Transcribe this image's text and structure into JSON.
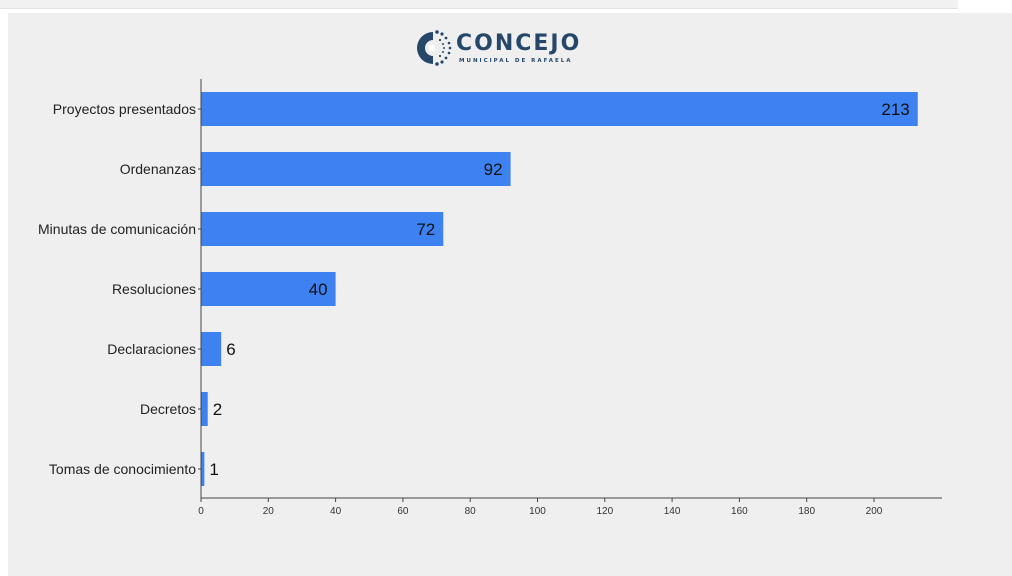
{
  "logo": {
    "name": "CONCEJO",
    "subtitle": "MUNICIPAL DE RAFAELA"
  },
  "colors": {
    "bar": "#3d82f0",
    "background": "#efefef",
    "brand": "#25476a"
  },
  "chart_data": {
    "type": "bar",
    "orientation": "horizontal",
    "categories": [
      "Proyectos presentados",
      "Ordenanzas",
      "Minutas de comunicación",
      "Resoluciones",
      "Declaraciones",
      "Decretos",
      "Tomas de conocimiento"
    ],
    "values": [
      213,
      92,
      72,
      40,
      6,
      2,
      1
    ],
    "data_labels": [
      "213",
      "92",
      "72",
      "40",
      "6",
      "2",
      "1"
    ],
    "xlim": [
      0,
      220
    ],
    "xticks": [
      "0",
      "20",
      "40",
      "60",
      "80",
      "100",
      "120",
      "140",
      "160",
      "180",
      "200"
    ],
    "grid": false,
    "legend": "none"
  }
}
